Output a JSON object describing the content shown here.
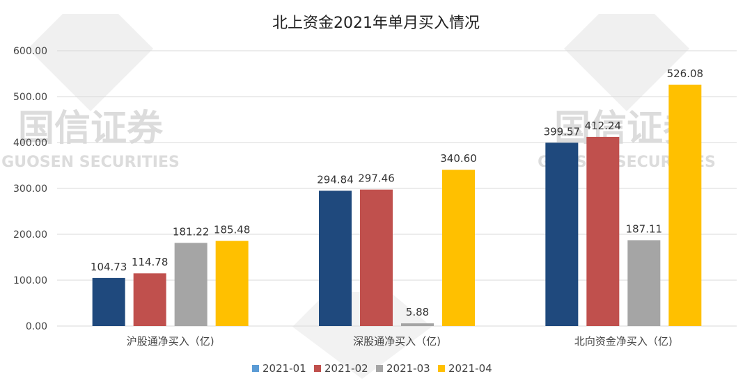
{
  "chart_data": {
    "type": "bar",
    "title": "北上资金2021年单月买入情况",
    "categories": [
      "沪股通净买入（亿)",
      "深股通净买入（亿)",
      "北向资金净买入（亿)"
    ],
    "series": [
      {
        "name": "2021-01",
        "values": [
          104.73,
          294.84,
          399.57
        ]
      },
      {
        "name": "2021-02",
        "values": [
          114.78,
          297.46,
          412.24
        ]
      },
      {
        "name": "2021-03",
        "values": [
          181.22,
          5.88,
          187.11
        ]
      },
      {
        "name": "2021-04",
        "values": [
          185.48,
          340.6,
          526.08
        ]
      }
    ],
    "ylim": [
      0,
      600
    ],
    "yticks": [
      "0.00",
      "100.00",
      "200.00",
      "300.00",
      "400.00",
      "500.00",
      "600.00"
    ],
    "data_labels": [
      [
        "104.73",
        "294.84",
        "399.57"
      ],
      [
        "114.78",
        "297.46",
        "412.24"
      ],
      [
        "181.22",
        "5.88",
        "187.11"
      ],
      [
        "185.48",
        "340.60",
        "526.08"
      ]
    ],
    "colors": [
      "#1f497d",
      "#c0504d",
      "#a5a5a5",
      "#ffc000"
    ],
    "legend_marker_colors": [
      "#5b9bd5",
      "#c0504d",
      "#a5a5a5",
      "#ffc000"
    ],
    "grid": true,
    "legend_position": "bottom"
  },
  "watermark": {
    "cn": "国信证券",
    "en": "GUOSEN SECURITIES"
  }
}
